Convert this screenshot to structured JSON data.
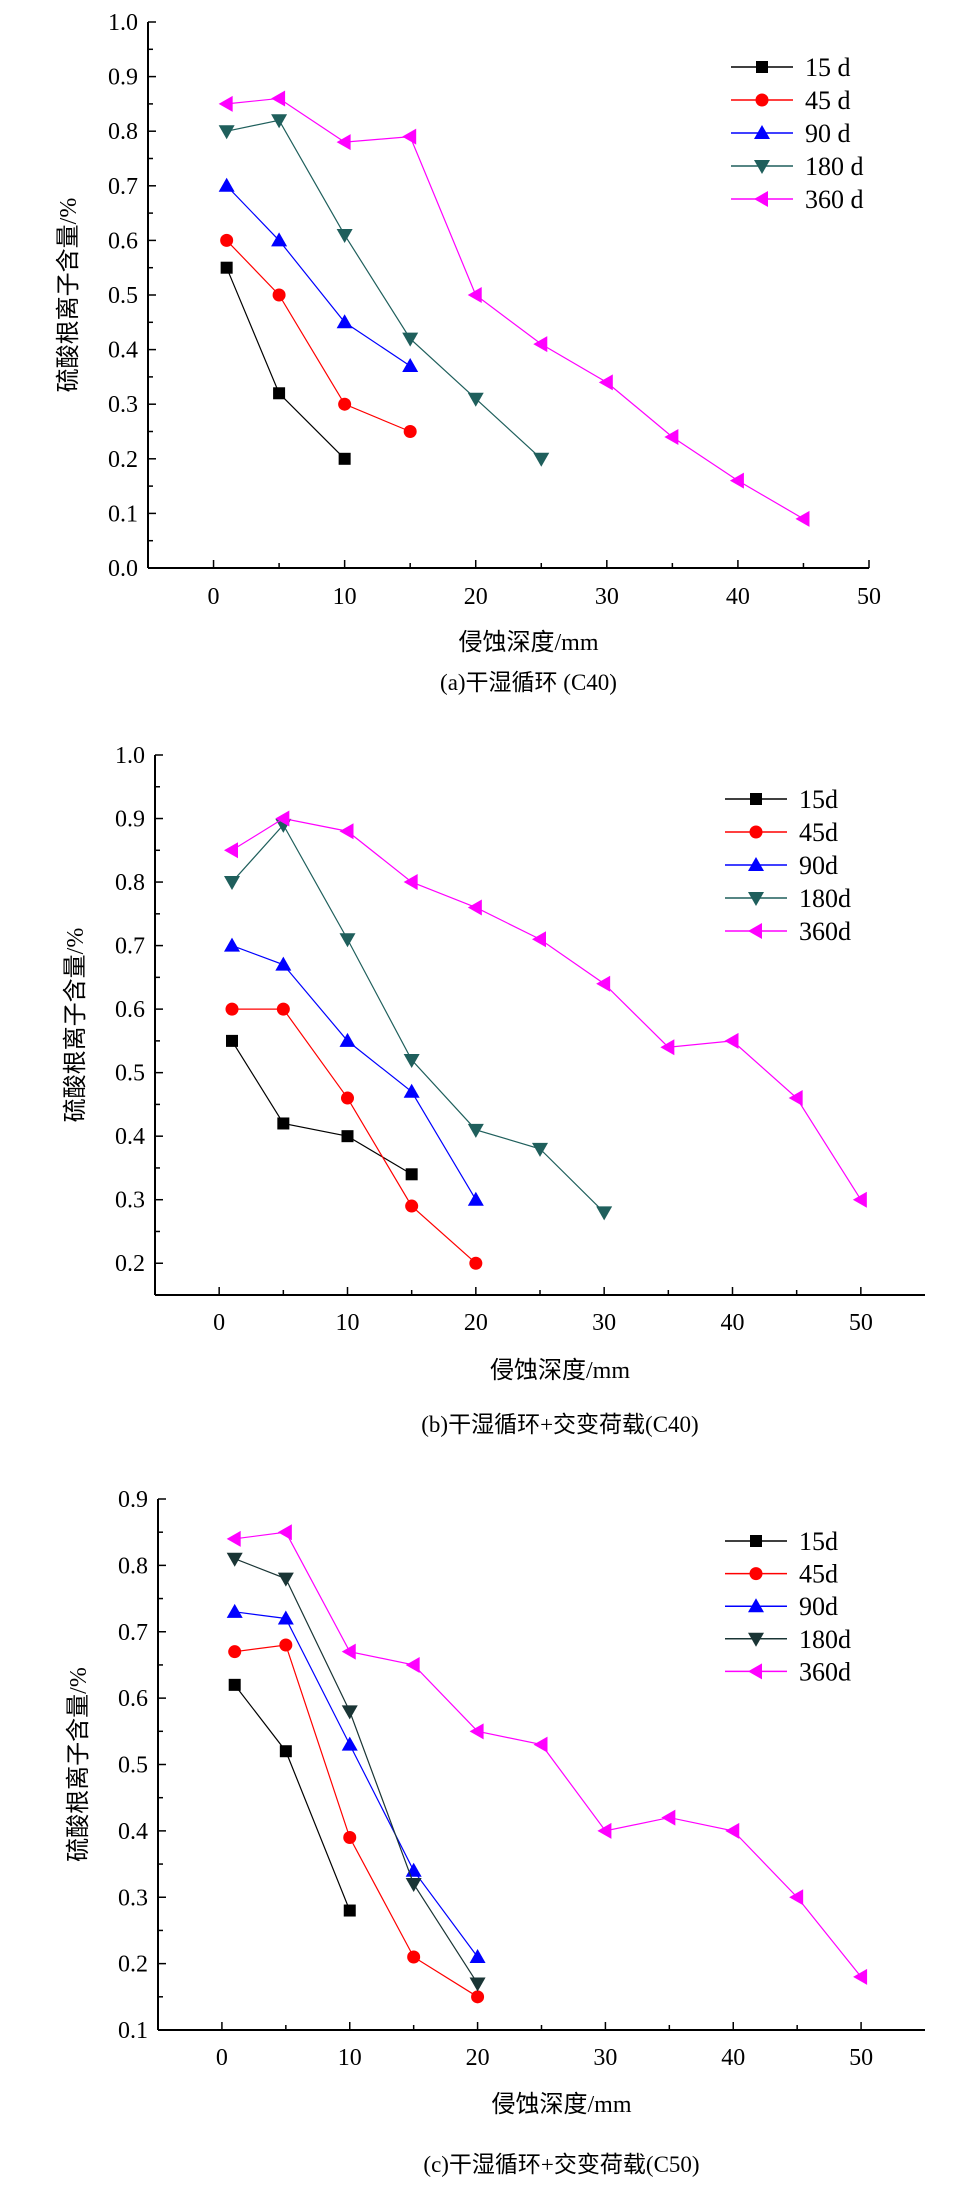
{
  "chart_data": [
    {
      "type": "line",
      "caption": "(a)干湿循环 (C40)",
      "xlabel": "侵蚀深度/mm",
      "ylabel": "硫酸根离子含量/%",
      "xlim": [
        -5,
        50
      ],
      "ylim": [
        0.0,
        1.0
      ],
      "xticks": [
        0,
        10,
        20,
        30,
        40,
        50
      ],
      "yticks": [
        0.0,
        0.1,
        0.2,
        0.3,
        0.4,
        0.5,
        0.6,
        0.7,
        0.8,
        0.9,
        1.0
      ],
      "ytick_decimals": 1,
      "grid": false,
      "legend_position": "top-right",
      "series": [
        {
          "name": "15 d",
          "color": "#000000",
          "marker": "square",
          "x": [
            1,
            5,
            10
          ],
          "y": [
            0.55,
            0.32,
            0.2
          ]
        },
        {
          "name": "45 d",
          "color": "#ff0000",
          "marker": "circle",
          "x": [
            1,
            5,
            10,
            15
          ],
          "y": [
            0.6,
            0.5,
            0.3,
            0.25
          ]
        },
        {
          "name": "90 d",
          "color": "#0000ff",
          "marker": "triangle-up",
          "x": [
            1,
            5,
            10,
            15
          ],
          "y": [
            0.7,
            0.6,
            0.45,
            0.37
          ]
        },
        {
          "name": "180 d",
          "color": "#1f5f5c",
          "marker": "triangle-down",
          "x": [
            1,
            5,
            10,
            15,
            20,
            25
          ],
          "y": [
            0.8,
            0.82,
            0.61,
            0.42,
            0.31,
            0.2
          ]
        },
        {
          "name": "360 d",
          "color": "#ff00ff",
          "marker": "triangle-left",
          "x": [
            1,
            5,
            10,
            15,
            20,
            25,
            30,
            35,
            40,
            45
          ],
          "y": [
            0.85,
            0.86,
            0.78,
            0.79,
            0.5,
            0.41,
            0.34,
            0.24,
            0.16,
            0.09
          ]
        }
      ]
    },
    {
      "type": "line",
      "caption": "(b)干湿循环+交变荷载(C40)",
      "xlabel": "侵蚀深度/mm",
      "ylabel": "硫酸根离子含量/%",
      "xlim": [
        -5,
        55
      ],
      "ylim": [
        0.15,
        1.0
      ],
      "xticks": [
        0,
        10,
        20,
        30,
        40,
        50
      ],
      "yticks": [
        0.2,
        0.3,
        0.4,
        0.5,
        0.6,
        0.7,
        0.8,
        0.9,
        1.0
      ],
      "ytick_decimals": 1,
      "grid": false,
      "legend_position": "top-right",
      "series": [
        {
          "name": "15d",
          "color": "#000000",
          "marker": "square",
          "x": [
            1,
            5,
            10,
            15
          ],
          "y": [
            0.55,
            0.42,
            0.4,
            0.34
          ]
        },
        {
          "name": "45d",
          "color": "#ff0000",
          "marker": "circle",
          "x": [
            1,
            5,
            10,
            15,
            20
          ],
          "y": [
            0.6,
            0.6,
            0.46,
            0.29,
            0.2
          ]
        },
        {
          "name": "90d",
          "color": "#0000ff",
          "marker": "triangle-up",
          "x": [
            1,
            5,
            10,
            15,
            20
          ],
          "y": [
            0.7,
            0.67,
            0.55,
            0.47,
            0.3
          ]
        },
        {
          "name": "180d",
          "color": "#1f5f5c",
          "marker": "triangle-down",
          "x": [
            1,
            5,
            10,
            15,
            20,
            25,
            30
          ],
          "y": [
            0.8,
            0.89,
            0.71,
            0.52,
            0.41,
            0.38,
            0.28
          ]
        },
        {
          "name": "360d",
          "color": "#ff00ff",
          "marker": "triangle-left",
          "x": [
            1,
            5,
            10,
            15,
            20,
            25,
            30,
            35,
            40,
            45,
            50
          ],
          "y": [
            0.85,
            0.9,
            0.88,
            0.8,
            0.76,
            0.71,
            0.64,
            0.54,
            0.55,
            0.46,
            0.3
          ]
        }
      ]
    },
    {
      "type": "line",
      "caption": "(c)干湿循环+交变荷载(C50)",
      "xlabel": "侵蚀深度/mm",
      "ylabel": "硫酸根离子含量/%",
      "xlim": [
        -5,
        55
      ],
      "ylim": [
        0.1,
        0.9
      ],
      "xticks": [
        0,
        10,
        20,
        30,
        40,
        50
      ],
      "yticks": [
        0.1,
        0.2,
        0.3,
        0.4,
        0.5,
        0.6,
        0.7,
        0.8,
        0.9
      ],
      "ytick_decimals": 1,
      "grid": false,
      "legend_position": "top-right",
      "series": [
        {
          "name": "15d",
          "color": "#000000",
          "marker": "square",
          "x": [
            1,
            5,
            10
          ],
          "y": [
            0.62,
            0.52,
            0.28
          ]
        },
        {
          "name": "45d",
          "color": "#ff0000",
          "marker": "circle",
          "x": [
            1,
            5,
            10,
            15,
            20
          ],
          "y": [
            0.67,
            0.68,
            0.39,
            0.21,
            0.15
          ]
        },
        {
          "name": "90d",
          "color": "#0000ff",
          "marker": "triangle-up",
          "x": [
            1,
            5,
            10,
            15,
            20
          ],
          "y": [
            0.73,
            0.72,
            0.53,
            0.34,
            0.21
          ]
        },
        {
          "name": "180d",
          "color": "#1a3535",
          "marker": "triangle-down",
          "x": [
            1,
            5,
            10,
            15,
            20
          ],
          "y": [
            0.81,
            0.78,
            0.58,
            0.32,
            0.17
          ]
        },
        {
          "name": "360d",
          "color": "#ff00ff",
          "marker": "triangle-left",
          "x": [
            1,
            5,
            10,
            15,
            20,
            25,
            30,
            35,
            40,
            45,
            50
          ],
          "y": [
            0.84,
            0.85,
            0.67,
            0.65,
            0.55,
            0.53,
            0.4,
            0.42,
            0.4,
            0.3,
            0.18
          ]
        }
      ]
    }
  ]
}
